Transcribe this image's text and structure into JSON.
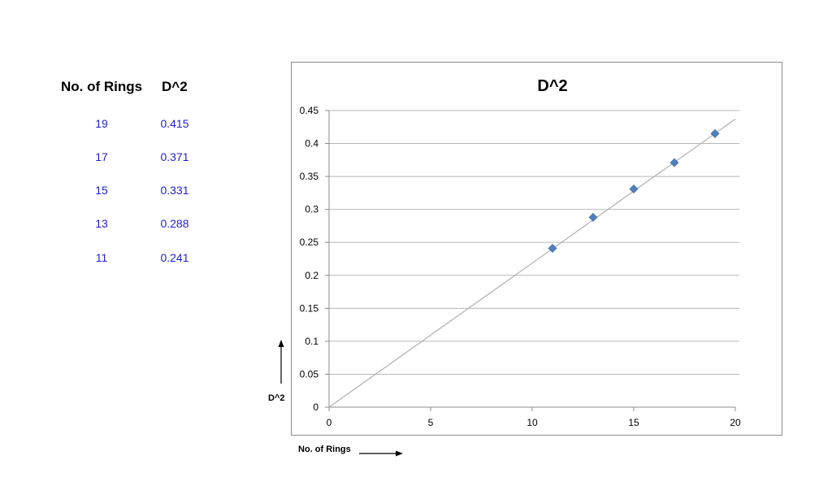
{
  "table": {
    "headers": [
      "No. of Rings",
      "D^2"
    ],
    "rows": [
      {
        "rings": "19",
        "d2": "0.415"
      },
      {
        "rings": "17",
        "d2": "0.371"
      },
      {
        "rings": "15",
        "d2": "0.331"
      },
      {
        "rings": "13",
        "d2": "0.288"
      },
      {
        "rings": "11",
        "d2": "0.241"
      }
    ]
  },
  "colors": {
    "table_values": "#1f1fd6",
    "marker": "#4f81bd",
    "trendline": "#b0b0b0",
    "gridline": "#b8b8b8"
  },
  "chart_data": {
    "type": "scatter",
    "title": "D^2",
    "xlabel": "No. of Rings",
    "ylabel": "D^2",
    "xlim": [
      0,
      20
    ],
    "ylim": [
      0,
      0.45
    ],
    "x_ticks": [
      "0",
      "5",
      "10",
      "15",
      "20"
    ],
    "y_ticks": [
      "0",
      "0.05",
      "0.1",
      "0.15",
      "0.2",
      "0.25",
      "0.3",
      "0.35",
      "0.4",
      "0.45"
    ],
    "grid": "horizontal",
    "series": [
      {
        "x": [
          19,
          17,
          15,
          13,
          11
        ],
        "y": [
          0.415,
          0.371,
          0.331,
          0.288,
          0.241
        ]
      }
    ],
    "trendline": {
      "from": [
        0,
        0
      ],
      "to": [
        20,
        0.437
      ]
    }
  }
}
